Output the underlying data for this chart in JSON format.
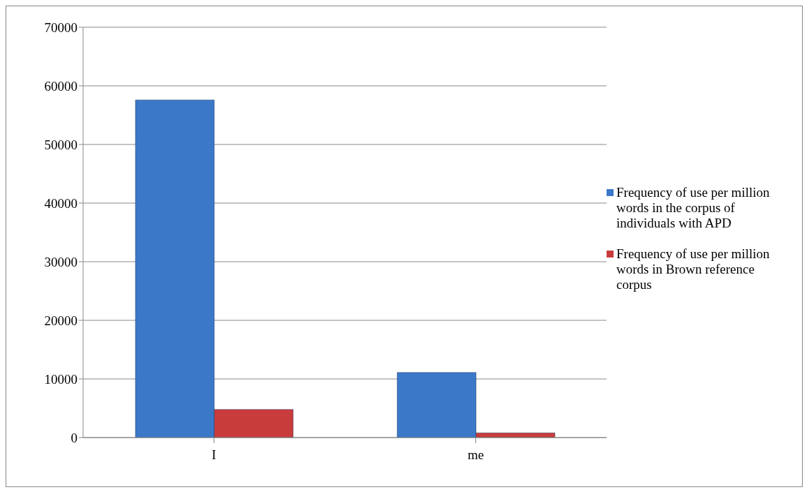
{
  "chart_data": {
    "type": "bar",
    "categories": [
      "I",
      "me"
    ],
    "series": [
      {
        "name": "Frequency of use per million words in the corpus of individuals with APD",
        "color": "#3b78c8",
        "values": [
          57600,
          11100
        ]
      },
      {
        "name": "Frequency of use per million words in Brown reference corpus",
        "color": "#c93c3c",
        "values": [
          4800,
          800
        ]
      }
    ],
    "ylim": [
      0,
      70000
    ],
    "yticks": [
      0,
      10000,
      20000,
      30000,
      40000,
      50000,
      60000,
      70000
    ],
    "grid": "y",
    "legend": "right"
  }
}
